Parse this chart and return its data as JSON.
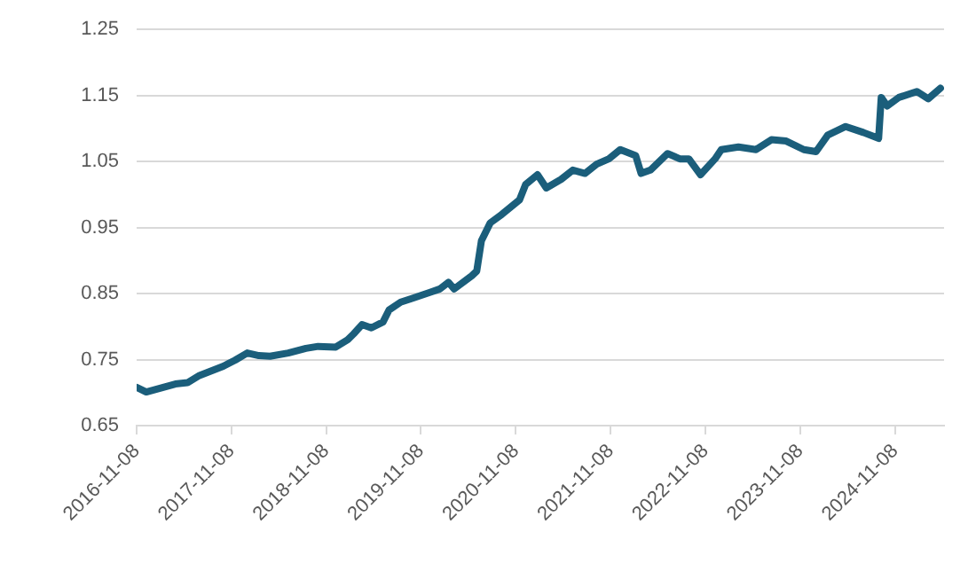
{
  "chart_data": {
    "type": "line",
    "x": [
      "2016-11-08",
      "2016-12-15",
      "2017-04-06",
      "2017-05-23",
      "2017-07-08",
      "2017-10-08",
      "2017-11-22",
      "2018-01-08",
      "2018-02-22",
      "2018-04-06",
      "2018-06-15",
      "2018-08-22",
      "2018-10-08",
      "2018-12-15",
      "2019-01-30",
      "2019-02-22",
      "2019-03-26",
      "2019-05-01",
      "2019-06-15",
      "2019-07-08",
      "2019-08-22",
      "2019-10-08",
      "2019-12-15",
      "2020-01-20",
      "2020-02-22",
      "2020-03-15",
      "2020-05-22",
      "2020-06-10",
      "2020-06-28",
      "2020-08-01",
      "2020-09-15",
      "2020-11-22",
      "2020-12-15",
      "2021-01-30",
      "2021-03-05",
      "2021-05-01",
      "2021-06-15",
      "2021-08-01",
      "2021-09-15",
      "2021-11-01",
      "2021-12-15",
      "2022-02-12",
      "2022-03-05",
      "2022-04-10",
      "2022-06-15",
      "2022-08-01",
      "2022-09-05",
      "2022-10-20",
      "2022-12-15",
      "2023-01-08",
      "2023-03-15",
      "2023-05-22",
      "2023-07-20",
      "2023-09-15",
      "2023-11-22",
      "2024-01-08",
      "2024-02-22",
      "2024-05-01",
      "2024-07-08",
      "2024-09-05",
      "2024-09-15",
      "2024-10-08",
      "2024-11-22",
      "2025-01-30",
      "2025-03-15",
      "2025-05-01"
    ],
    "series": [
      {
        "color": "#1b5e7b",
        "values": [
          0.708,
          0.701,
          0.713,
          0.715,
          0.726,
          0.74,
          0.749,
          0.76,
          0.756,
          0.755,
          0.76,
          0.767,
          0.77,
          0.769,
          0.78,
          0.789,
          0.803,
          0.798,
          0.807,
          0.825,
          0.837,
          0.843,
          0.852,
          0.857,
          0.867,
          0.857,
          0.877,
          0.884,
          0.93,
          0.957,
          0.97,
          0.992,
          1.015,
          1.03,
          1.01,
          1.023,
          1.037,
          1.032,
          1.046,
          1.054,
          1.068,
          1.059,
          1.032,
          1.037,
          1.062,
          1.054,
          1.054,
          1.03,
          1.054,
          1.068,
          1.072,
          1.068,
          1.083,
          1.081,
          1.068,
          1.065,
          1.09,
          1.103,
          1.094,
          1.085,
          1.147,
          1.134,
          1.147,
          1.156,
          1.145,
          1.161
        ]
      }
    ],
    "xlim": [
      "2016-11-08",
      "2025-05-15"
    ],
    "xticks": [
      "2016-11-08",
      "2017-11-08",
      "2018-11-08",
      "2019-11-08",
      "2020-11-08",
      "2021-11-08",
      "2022-11-08",
      "2023-11-08",
      "2024-11-08"
    ],
    "ylim": [
      0.65,
      1.25
    ],
    "yticks": [
      0.65,
      0.75,
      0.85,
      0.95,
      1.05,
      1.15,
      1.25
    ],
    "grid": "y",
    "legend": false,
    "marker": "none",
    "line_style": "solid"
  }
}
